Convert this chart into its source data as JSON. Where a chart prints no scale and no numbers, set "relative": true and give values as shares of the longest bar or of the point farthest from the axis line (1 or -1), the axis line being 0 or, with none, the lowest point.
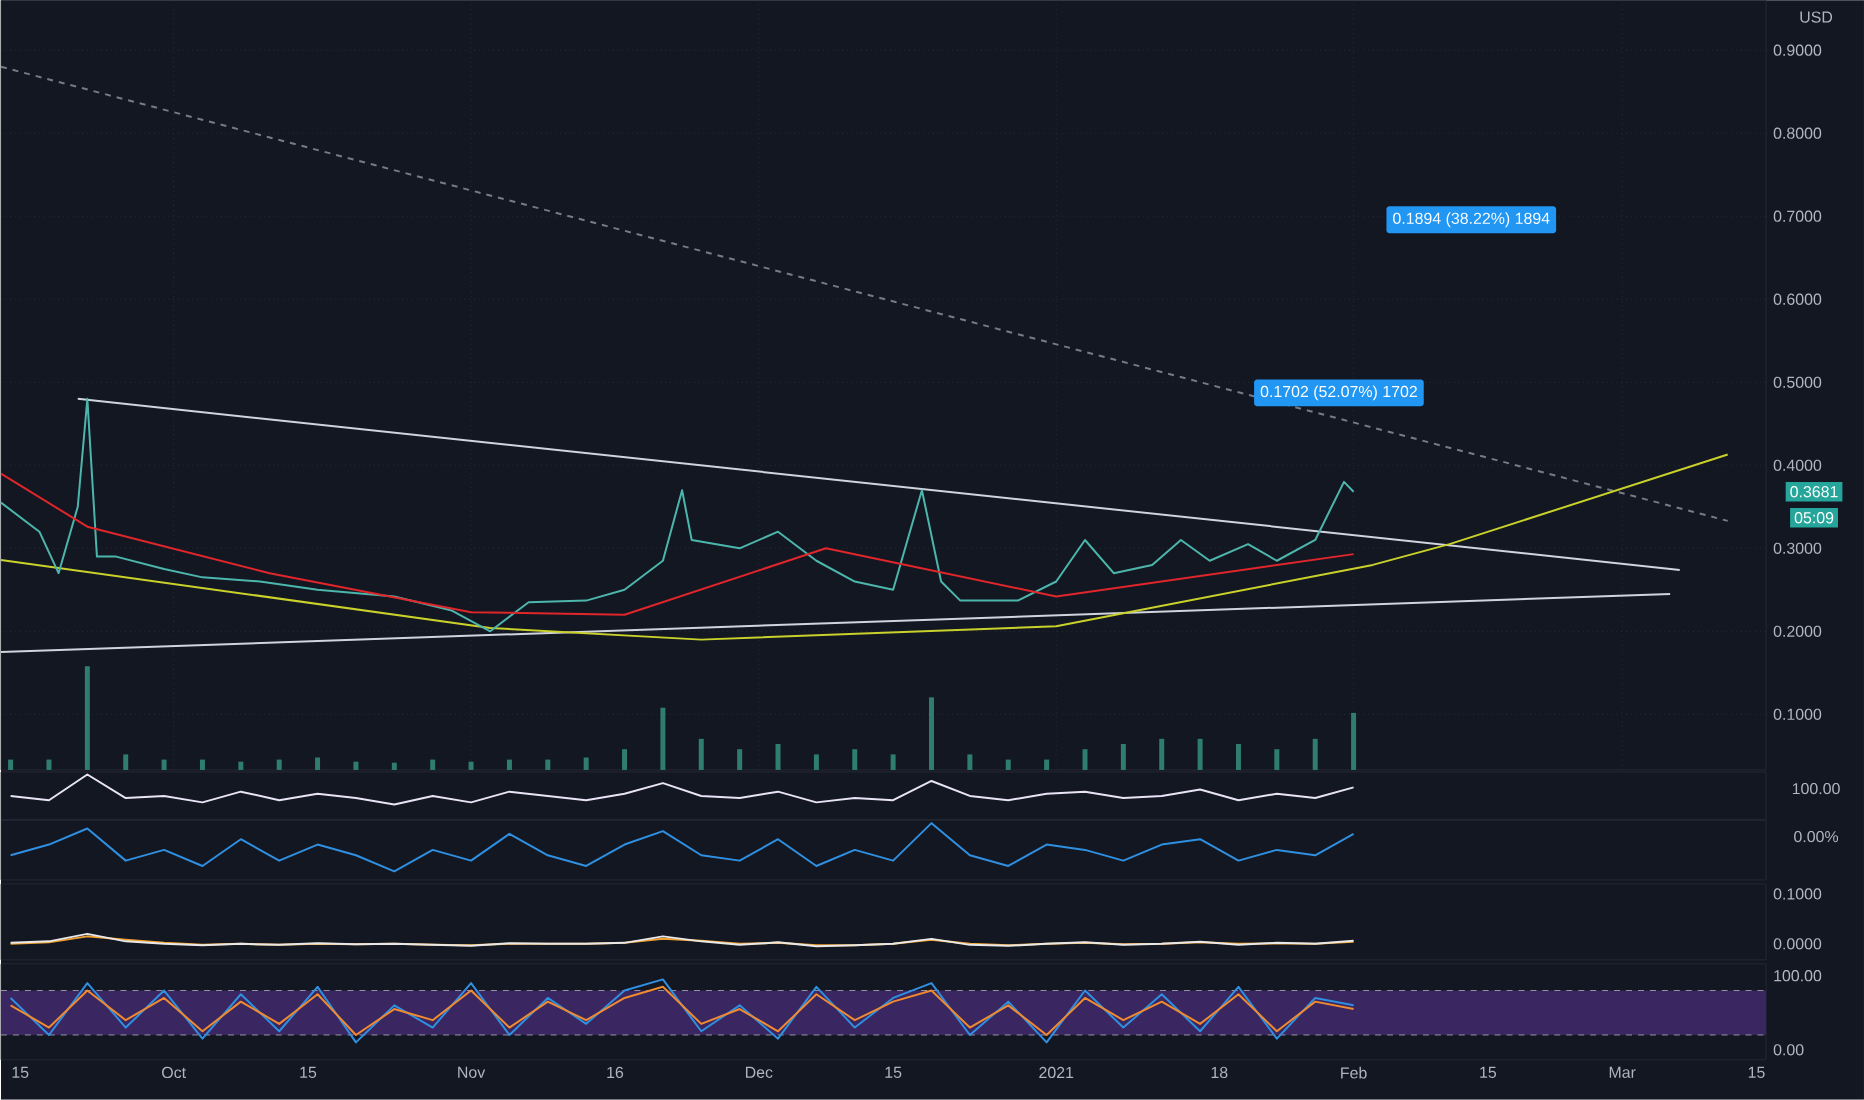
{
  "chart_data": [
    {
      "type": "line",
      "xlim": [
        "2020-09-13",
        "2021-03-16"
      ],
      "ylim": [
        0.033,
        0.96
      ],
      "grid": true,
      "tick_labels": "y",
      "xticks": [
        {
          "value": "2020-10-01",
          "label": null
        },
        {
          "value": "2020-11-01",
          "label": null
        },
        {
          "value": "2020-12-01",
          "label": null
        },
        {
          "value": "2021-01-01",
          "label": null
        },
        {
          "value": "2021-02-01",
          "label": null
        },
        {
          "value": "2021-03-01",
          "label": null
        }
      ],
      "yticks": [
        {
          "value": 0.1,
          "label": "0.1000"
        },
        {
          "value": 0.2,
          "label": "0.2000"
        },
        {
          "value": 0.3,
          "label": "0.3000"
        },
        {
          "value": 0.4,
          "label": "0.4000"
        },
        {
          "value": 0.5,
          "label": "0.5000"
        },
        {
          "value": 0.6,
          "label": "0.6000"
        },
        {
          "value": 0.7,
          "label": "0.7000"
        },
        {
          "value": 0.8,
          "label": "0.8000"
        },
        {
          "value": 0.9,
          "label": "0.9000"
        }
      ],
      "series": [
        {
          "color": "#787b86",
          "line_style": "dashed",
          "x": [
            "2020-09-13",
            "2021-03-12"
          ],
          "values": [
            0.88,
            0.333
          ]
        },
        {
          "color": "#d1d4dc",
          "x": [
            "2020-09-21",
            "2021-03-07"
          ],
          "values": [
            0.48,
            0.274
          ]
        },
        {
          "color": "#d1d4dc",
          "x": [
            "2020-09-13",
            "2021-03-06"
          ],
          "values": [
            0.175,
            0.245
          ]
        },
        {
          "color": "#c9d12a",
          "x": [
            "2020-09-13",
            "2020-11-03",
            "2020-11-25",
            "2021-01-01",
            "2021-02-03",
            "2021-02-11",
            "2021-03-12"
          ],
          "values": [
            0.286,
            0.204,
            0.19,
            0.206,
            0.28,
            0.305,
            0.413
          ]
        },
        {
          "color": "#4db6ac",
          "x": [
            "2020-09-13",
            "2020-09-17",
            "2020-09-19",
            "2020-09-21",
            "2020-09-22",
            "2020-09-23",
            "2020-09-25",
            "2020-09-30",
            "2020-10-04",
            "2020-10-10",
            "2020-10-16",
            "2020-10-24",
            "2020-10-30",
            "2020-11-03",
            "2020-11-07",
            "2020-11-13",
            "2020-11-17",
            "2020-11-21",
            "2020-11-23",
            "2020-11-24",
            "2020-11-29",
            "2020-12-03",
            "2020-12-07",
            "2020-12-11",
            "2020-12-15",
            "2020-12-18",
            "2020-12-20",
            "2020-12-22",
            "2020-12-28",
            "2021-01-01",
            "2021-01-04",
            "2021-01-07",
            "2021-01-11",
            "2021-01-14",
            "2021-01-17",
            "2021-01-21",
            "2021-01-24",
            "2021-01-28",
            "2021-01-31",
            "2021-02-01"
          ],
          "values": [
            0.355,
            0.32,
            0.27,
            0.35,
            0.48,
            0.29,
            0.29,
            0.275,
            0.265,
            0.26,
            0.25,
            0.242,
            0.225,
            0.2,
            0.235,
            0.237,
            0.25,
            0.285,
            0.37,
            0.31,
            0.3,
            0.32,
            0.285,
            0.26,
            0.25,
            0.37,
            0.26,
            0.237,
            0.237,
            0.26,
            0.31,
            0.27,
            0.28,
            0.31,
            0.285,
            0.305,
            0.285,
            0.31,
            0.38,
            0.3681
          ]
        },
        {
          "color": "#e0262b",
          "x": [
            "2020-09-13",
            "2020-09-22",
            "2020-10-11",
            "2020-11-01",
            "2020-11-17",
            "2020-12-08",
            "2021-01-01",
            "2021-02-01"
          ],
          "values": [
            0.39,
            0.326,
            0.27,
            0.223,
            0.22,
            0.3,
            0.242,
            0.293
          ]
        }
      ],
      "annotations": [
        "0.1702 (52.07%) 1702",
        "0.1894 (38.22%) 1894",
        "0.3681",
        "USD",
        "05:09"
      ]
    },
    {
      "type": "bar",
      "relative": true,
      "xlim": [
        "2020-09-13",
        "2021-03-16"
      ],
      "tick_labels": false,
      "x": [
        "2020-09-14",
        "2020-09-18",
        "2020-09-22",
        "2020-09-26",
        "2020-09-30",
        "2020-10-04",
        "2020-10-08",
        "2020-10-12",
        "2020-10-16",
        "2020-10-20",
        "2020-10-24",
        "2020-10-28",
        "2020-11-01",
        "2020-11-05",
        "2020-11-09",
        "2020-11-13",
        "2020-11-17",
        "2020-11-21",
        "2020-11-25",
        "2020-11-29",
        "2020-12-03",
        "2020-12-07",
        "2020-12-11",
        "2020-12-15",
        "2020-12-19",
        "2020-12-23",
        "2020-12-27",
        "2020-12-31",
        "2021-01-04",
        "2021-01-08",
        "2021-01-12",
        "2021-01-16",
        "2021-01-20",
        "2021-01-24",
        "2021-01-28",
        "2021-02-01"
      ],
      "series": [
        {
          "color": "#2e7d6f",
          "values": [
            0.1,
            0.1,
            1.0,
            0.15,
            0.1,
            0.1,
            0.08,
            0.1,
            0.12,
            0.08,
            0.07,
            0.1,
            0.08,
            0.1,
            0.1,
            0.12,
            0.2,
            0.6,
            0.3,
            0.2,
            0.25,
            0.15,
            0.2,
            0.15,
            0.7,
            0.15,
            0.1,
            0.1,
            0.2,
            0.25,
            0.3,
            0.3,
            0.25,
            0.2,
            0.3,
            0.55
          ]
        }
      ]
    },
    {
      "type": "line",
      "relative": true,
      "xlim": [
        "2020-09-13",
        "2021-03-16"
      ],
      "tick_labels": false,
      "x": [
        "2020-09-14",
        "2020-09-18",
        "2020-09-22",
        "2020-09-26",
        "2020-09-30",
        "2020-10-04",
        "2020-10-08",
        "2020-10-12",
        "2020-10-16",
        "2020-10-20",
        "2020-10-24",
        "2020-10-28",
        "2020-11-01",
        "2020-11-05",
        "2020-11-09",
        "2020-11-13",
        "2020-11-17",
        "2020-11-21",
        "2020-11-25",
        "2020-11-29",
        "2020-12-03",
        "2020-12-07",
        "2020-12-11",
        "2020-12-15",
        "2020-12-19",
        "2020-12-23",
        "2020-12-27",
        "2020-12-31",
        "2021-01-04",
        "2021-01-08",
        "2021-01-12",
        "2021-01-16",
        "2021-01-20",
        "2021-01-24",
        "2021-01-28",
        "2021-02-01"
      ],
      "series": [
        {
          "color": "#e8e3f5",
          "values": [
            0.5,
            0.4,
            1.0,
            0.45,
            0.5,
            0.35,
            0.6,
            0.4,
            0.55,
            0.45,
            0.3,
            0.5,
            0.35,
            0.6,
            0.5,
            0.4,
            0.55,
            0.8,
            0.5,
            0.45,
            0.6,
            0.35,
            0.45,
            0.4,
            0.85,
            0.5,
            0.4,
            0.55,
            0.6,
            0.45,
            0.5,
            0.65,
            0.4,
            0.55,
            0.45,
            0.7
          ]
        }
      ],
      "annotations": [
        "100.00"
      ]
    },
    {
      "type": "line",
      "relative": true,
      "xlim": [
        "2020-09-13",
        "2021-03-16"
      ],
      "tick_labels": false,
      "x": [
        "2020-09-14",
        "2020-09-18",
        "2020-09-22",
        "2020-09-26",
        "2020-09-30",
        "2020-10-04",
        "2020-10-08",
        "2020-10-12",
        "2020-10-16",
        "2020-10-20",
        "2020-10-24",
        "2020-10-28",
        "2020-11-01",
        "2020-11-05",
        "2020-11-09",
        "2020-11-13",
        "2020-11-17",
        "2020-11-21",
        "2020-11-25",
        "2020-11-29",
        "2020-12-03",
        "2020-12-07",
        "2020-12-11",
        "2020-12-15",
        "2020-12-19",
        "2020-12-23",
        "2020-12-27",
        "2020-12-31",
        "2021-01-04",
        "2021-01-08",
        "2021-01-12",
        "2021-01-16",
        "2021-01-20",
        "2021-01-24",
        "2021-01-28",
        "2021-02-01"
      ],
      "series": [
        {
          "color": "#2f8fe0",
          "values": [
            0.4,
            0.6,
            0.9,
            0.3,
            0.5,
            0.2,
            0.7,
            0.3,
            0.6,
            0.4,
            0.1,
            0.5,
            0.3,
            0.8,
            0.4,
            0.2,
            0.6,
            0.85,
            0.4,
            0.3,
            0.7,
            0.2,
            0.5,
            0.3,
            1.0,
            0.4,
            0.2,
            0.6,
            0.5,
            0.3,
            0.6,
            0.7,
            0.3,
            0.5,
            0.4,
            0.8
          ]
        }
      ],
      "annotations": [
        "0.00%"
      ]
    },
    {
      "type": "line",
      "xlim": [
        "2020-09-13",
        "2021-03-16"
      ],
      "ylim": [
        -0.032,
        0.12
      ],
      "tick_labels": "y",
      "yticks": [
        {
          "value": 0.1,
          "label": "0.1000"
        },
        {
          "value": 0,
          "label": "0.0000"
        }
      ],
      "x": [
        "2020-09-14",
        "2020-09-18",
        "2020-09-22",
        "2020-09-26",
        "2020-09-30",
        "2020-10-04",
        "2020-10-08",
        "2020-10-12",
        "2020-10-16",
        "2020-10-20",
        "2020-10-24",
        "2020-10-28",
        "2020-11-01",
        "2020-11-05",
        "2020-11-09",
        "2020-11-13",
        "2020-11-17",
        "2020-11-21",
        "2020-11-25",
        "2020-11-29",
        "2020-12-03",
        "2020-12-07",
        "2020-12-11",
        "2020-12-15",
        "2020-12-19",
        "2020-12-23",
        "2020-12-27",
        "2020-12-31",
        "2021-01-04",
        "2021-01-08",
        "2021-01-12",
        "2021-01-16",
        "2021-01-20",
        "2021-01-24",
        "2021-01-28",
        "2021-02-01"
      ],
      "series": [
        {
          "color": "#f0a030",
          "values": [
            0.0,
            0.003,
            0.015,
            0.008,
            0.002,
            -0.002,
            0.0,
            -0.002,
            0.0,
            -0.001,
            0.0,
            -0.002,
            -0.003,
            0.0,
            0.0,
            0.0,
            0.002,
            0.01,
            0.006,
            0.0,
            0.002,
            -0.003,
            -0.003,
            0.0,
            0.008,
            0.0,
            -0.003,
            0.0,
            0.002,
            -0.001,
            0.0,
            0.003,
            0.0,
            0.001,
            0.0,
            0.004
          ]
        },
        {
          "color": "#e8e8e8",
          "values": [
            0.002,
            0.005,
            0.02,
            0.005,
            0.0,
            -0.003,
            0.0,
            -0.002,
            0.001,
            -0.001,
            0.0,
            -0.002,
            -0.004,
            0.001,
            0.0,
            0.0,
            0.002,
            0.015,
            0.005,
            -0.002,
            0.003,
            -0.005,
            -0.003,
            0.0,
            0.01,
            -0.002,
            -0.004,
            0.0,
            0.003,
            -0.002,
            0.0,
            0.004,
            -0.002,
            0.002,
            0.0,
            0.006
          ]
        }
      ]
    },
    {
      "type": "line",
      "xlim": [
        "2020-09-13",
        "2021-03-16"
      ],
      "ylim": [
        -13.5,
        116
      ],
      "xticks": [
        {
          "value": "2020-09-15",
          "label": "15"
        },
        {
          "value": "2020-10-01",
          "label": "Oct"
        },
        {
          "value": "2020-10-15",
          "label": "15"
        },
        {
          "value": "2020-11-01",
          "label": "Nov"
        },
        {
          "value": "2020-11-16",
          "label": "16"
        },
        {
          "value": "2020-12-01",
          "label": "Dec"
        },
        {
          "value": "2020-12-15",
          "label": "15"
        },
        {
          "value": "2021-01-01",
          "label": "2021"
        },
        {
          "value": "2021-01-18",
          "label": "18"
        },
        {
          "value": "2021-02-01",
          "label": "Feb"
        },
        {
          "value": "2021-02-15",
          "label": "15"
        },
        {
          "value": "2021-03-01",
          "label": "Mar"
        },
        {
          "value": "2021-03-15",
          "label": "15"
        }
      ],
      "yticks": [
        {
          "value": 100,
          "label": "100.00"
        },
        {
          "value": 0,
          "label": "0.00"
        }
      ],
      "bands": [
        {
          "axis": "y",
          "from": 20,
          "to": 80,
          "color": "#3a2660"
        }
      ],
      "ref_lines": [
        {
          "axis": "y",
          "value": 20,
          "line_style": "dashed"
        },
        {
          "axis": "y",
          "value": 80,
          "line_style": "dashed"
        }
      ],
      "x": [
        "2020-09-14",
        "2020-09-18",
        "2020-09-22",
        "2020-09-26",
        "2020-09-30",
        "2020-10-04",
        "2020-10-08",
        "2020-10-12",
        "2020-10-16",
        "2020-10-20",
        "2020-10-24",
        "2020-10-28",
        "2020-11-01",
        "2020-11-05",
        "2020-11-09",
        "2020-11-13",
        "2020-11-17",
        "2020-11-21",
        "2020-11-25",
        "2020-11-29",
        "2020-12-03",
        "2020-12-07",
        "2020-12-11",
        "2020-12-15",
        "2020-12-19",
        "2020-12-23",
        "2020-12-27",
        "2020-12-31",
        "2021-01-04",
        "2021-01-08",
        "2021-01-12",
        "2021-01-16",
        "2021-01-20",
        "2021-01-24",
        "2021-01-28",
        "2021-02-01"
      ],
      "series": [
        {
          "color": "#2f8fe0",
          "values": [
            70,
            20,
            90,
            30,
            80,
            15,
            75,
            25,
            85,
            10,
            60,
            30,
            90,
            20,
            70,
            35,
            80,
            95,
            25,
            60,
            15,
            85,
            30,
            70,
            90,
            20,
            65,
            10,
            80,
            30,
            75,
            25,
            85,
            15,
            70,
            60
          ]
        },
        {
          "color": "#f08a30",
          "values": [
            60,
            30,
            80,
            40,
            70,
            25,
            65,
            35,
            75,
            20,
            55,
            40,
            80,
            30,
            65,
            40,
            70,
            85,
            35,
            55,
            25,
            75,
            40,
            65,
            80,
            30,
            60,
            20,
            70,
            40,
            65,
            35,
            75,
            25,
            65,
            55
          ]
        }
      ]
    }
  ]
}
